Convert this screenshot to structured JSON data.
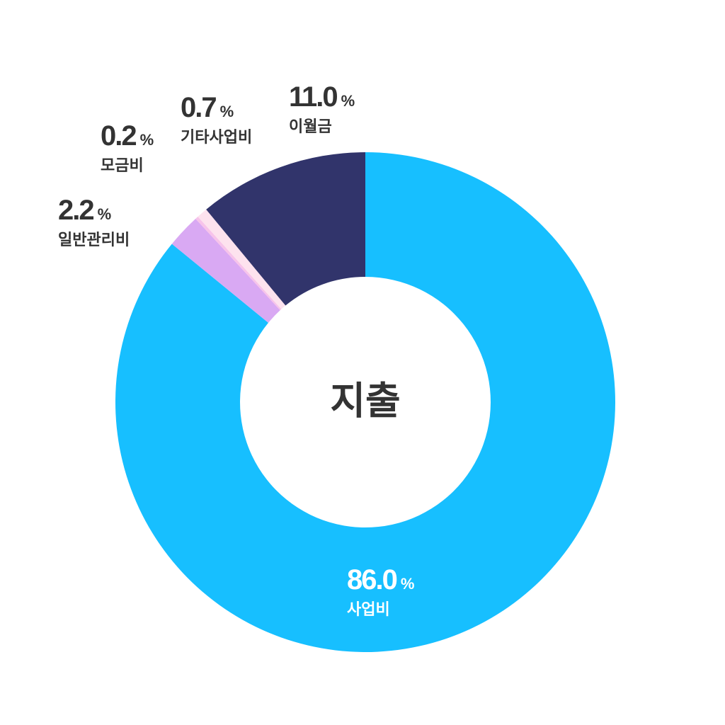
{
  "chart_data": {
    "type": "donut",
    "title": "지출",
    "categories": [
      "사업비",
      "일반관리비",
      "모금비",
      "기타사업비",
      "이월금"
    ],
    "values": [
      86.0,
      2.2,
      0.2,
      0.7,
      11.0
    ],
    "value_labels": [
      "86.0",
      "2.2",
      "0.2",
      "0.7",
      "11.0"
    ],
    "unit": "%",
    "colors": [
      "#17bfff",
      "#d9a9f3",
      "#f7c3ea",
      "#fde2ee",
      "#31346b"
    ]
  }
}
